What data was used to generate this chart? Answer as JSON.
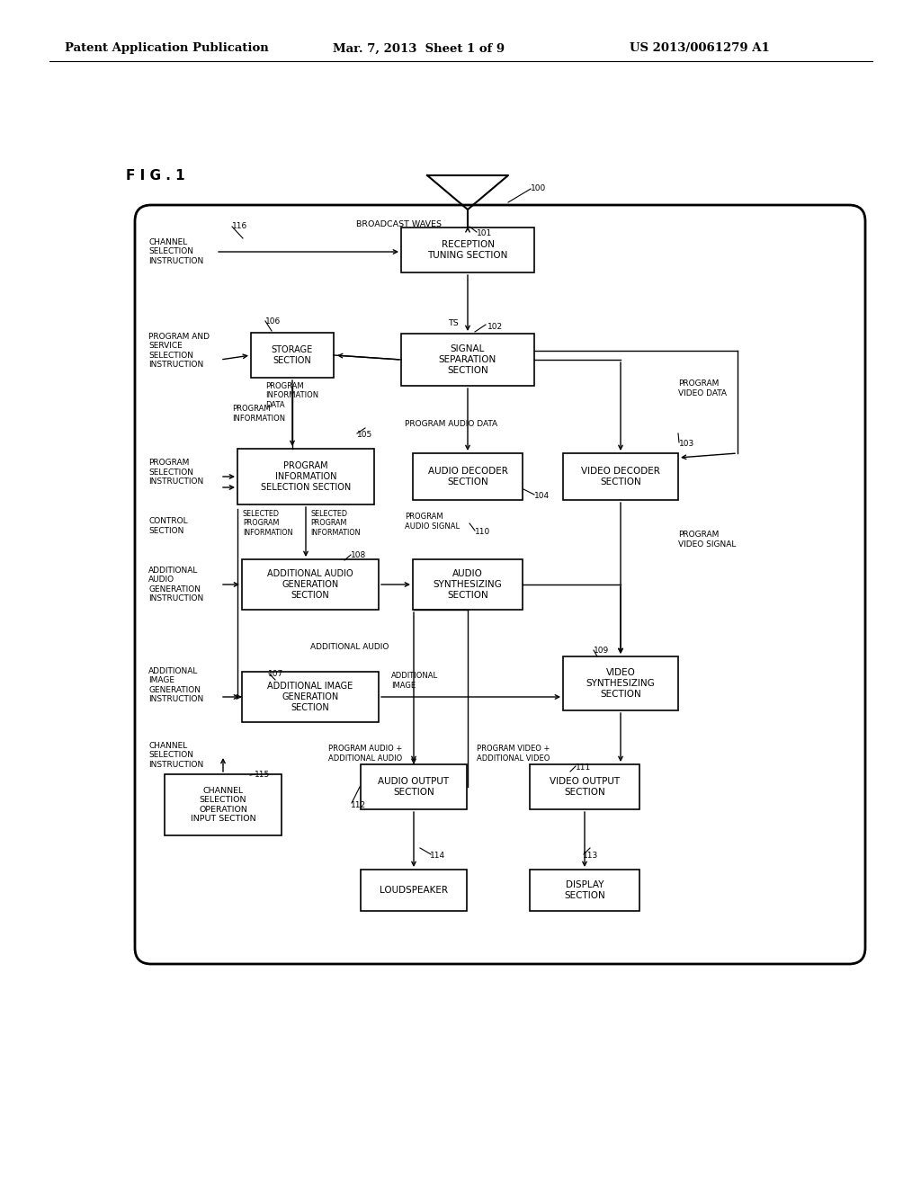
{
  "header_left": "Patent Application Publication",
  "header_mid": "Mar. 7, 2013  Sheet 1 of 9",
  "header_right": "US 2013/0061279 A1",
  "fig_label": "F I G . 1",
  "background_color": "#ffffff"
}
